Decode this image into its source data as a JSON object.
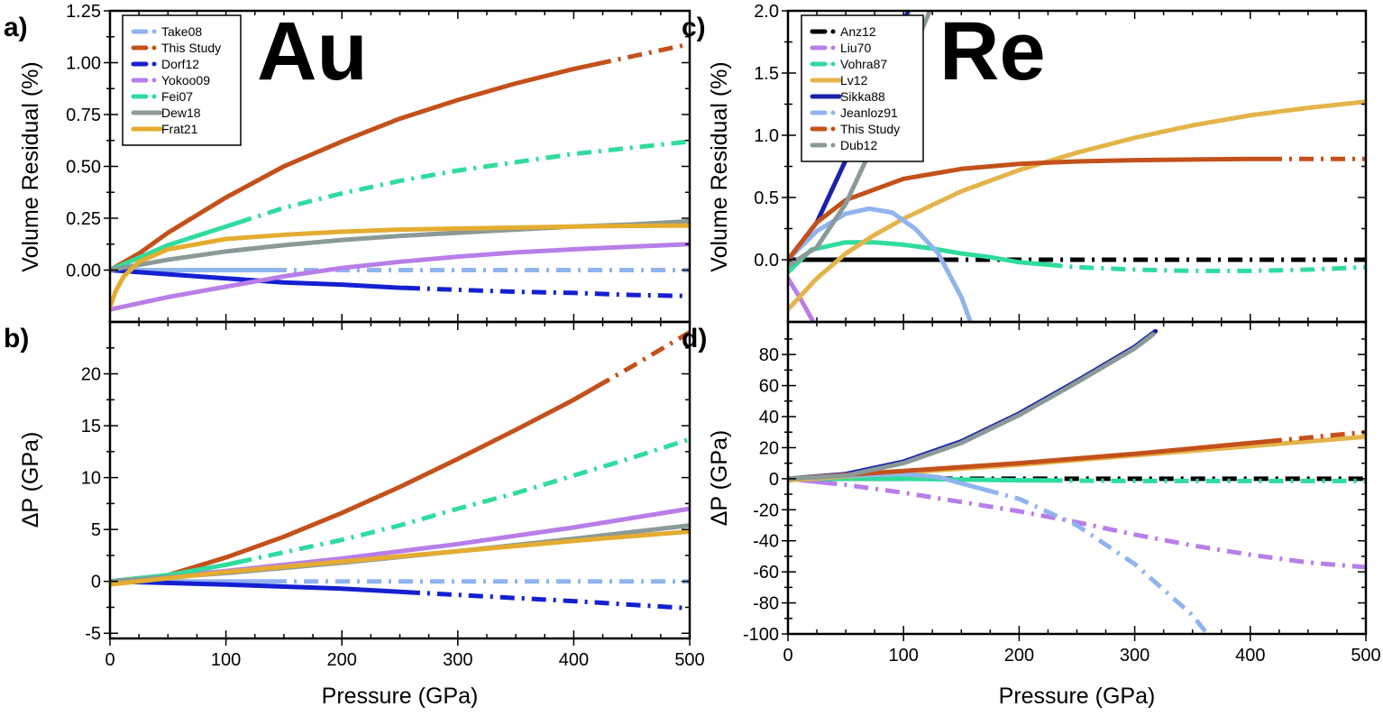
{
  "chart_data": [
    {
      "panel_label": "a)",
      "type": "line",
      "element_label": "Au",
      "xlabel": "",
      "ylabel": "Volume Residual (%)",
      "xlim": [
        0,
        500
      ],
      "ylim": [
        -0.25,
        1.25
      ],
      "yticks": [
        0,
        0.25,
        0.5,
        0.75,
        1.0,
        1.25
      ],
      "ytick_labels": [
        "0.00",
        "0.25",
        "0.50",
        "0.75",
        "1.00",
        "1.25"
      ],
      "xticks": [
        0,
        100,
        200,
        300,
        400,
        500
      ],
      "legend_position": "top-left",
      "series": [
        {
          "name": "Take08",
          "color": "#8fb4ee",
          "legend_style": "dashdot",
          "solid_until": 140,
          "x": [
            0,
            100,
            200,
            300,
            400,
            500
          ],
          "y": [
            0,
            0,
            0,
            0,
            0,
            0
          ]
        },
        {
          "name": "This Study",
          "color": "#c4501a",
          "legend_style": "dashdot",
          "solid_until": 420,
          "x": [
            0,
            25,
            50,
            100,
            150,
            200,
            250,
            300,
            350,
            400,
            450,
            500
          ],
          "y": [
            0,
            0.08,
            0.18,
            0.35,
            0.5,
            0.62,
            0.73,
            0.82,
            0.9,
            0.97,
            1.03,
            1.09
          ]
        },
        {
          "name": "Dorf12",
          "color": "#1420d0",
          "legend_style": "dashdot",
          "solid_until": 255,
          "x": [
            0,
            50,
            100,
            150,
            200,
            250,
            300,
            350,
            400,
            450,
            500
          ],
          "y": [
            0,
            -0.02,
            -0.04,
            -0.06,
            -0.07,
            -0.085,
            -0.095,
            -0.105,
            -0.11,
            -0.12,
            -0.125
          ]
        },
        {
          "name": "Yokoo09",
          "color": "#b87ee8",
          "legend_style": "dashdot",
          "solid_until": 500,
          "x": [
            0,
            50,
            100,
            150,
            200,
            250,
            300,
            350,
            400,
            450,
            500
          ],
          "y": [
            -0.19,
            -0.13,
            -0.08,
            -0.03,
            0.01,
            0.04,
            0.065,
            0.085,
            0.1,
            0.113,
            0.125
          ]
        },
        {
          "name": "Fei07",
          "color": "#2fdc9c",
          "legend_style": "dashdot",
          "solid_until": 110,
          "x": [
            0,
            50,
            100,
            150,
            200,
            250,
            300,
            350,
            400,
            450,
            500
          ],
          "y": [
            0,
            0.12,
            0.21,
            0.3,
            0.37,
            0.43,
            0.48,
            0.52,
            0.56,
            0.59,
            0.62
          ]
        },
        {
          "name": "Dew18",
          "color": "#8a9a98",
          "legend_style": "solid",
          "solid_until": 500,
          "x": [
            0,
            50,
            100,
            150,
            200,
            250,
            300,
            350,
            400,
            450,
            500
          ],
          "y": [
            0,
            0.05,
            0.09,
            0.12,
            0.145,
            0.165,
            0.18,
            0.195,
            0.21,
            0.22,
            0.235
          ]
        },
        {
          "name": "Frat21",
          "color": "#e4ac30",
          "legend_style": "solid",
          "solid_until": 500,
          "x": [
            0,
            5,
            12,
            25,
            50,
            100,
            150,
            200,
            250,
            300,
            350,
            400,
            450,
            500
          ],
          "y": [
            -0.18,
            -0.1,
            -0.03,
            0.04,
            0.1,
            0.15,
            0.17,
            0.185,
            0.195,
            0.2,
            0.205,
            0.21,
            0.213,
            0.215
          ]
        }
      ]
    },
    {
      "panel_label": "b)",
      "type": "line",
      "xlabel": "Pressure (GPa)",
      "ylabel": "ΔP (GPa)",
      "xlim": [
        0,
        500
      ],
      "ylim": [
        -5.5,
        25
      ],
      "yticks": [
        -5,
        0,
        5,
        10,
        15,
        20
      ],
      "ytick_labels": [
        "-5",
        "0",
        "5",
        "10",
        "15",
        "20"
      ],
      "xticks": [
        0,
        100,
        200,
        300,
        400,
        500
      ],
      "xtick_labels": [
        "0",
        "100",
        "200",
        "300",
        "400",
        "500"
      ],
      "series": [
        {
          "name": "Take08",
          "color": "#8fb4ee",
          "solid_until": 140,
          "x": [
            0,
            500
          ],
          "y": [
            0,
            0
          ]
        },
        {
          "name": "This Study",
          "color": "#c4501a",
          "solid_until": 420,
          "x": [
            0,
            50,
            100,
            150,
            200,
            250,
            300,
            350,
            400,
            450,
            500
          ],
          "y": [
            0,
            0.6,
            2.3,
            4.3,
            6.6,
            9.1,
            11.8,
            14.6,
            17.5,
            20.7,
            24
          ]
        },
        {
          "name": "Dorf12",
          "color": "#1420d0",
          "solid_until": 255,
          "x": [
            0,
            100,
            200,
            250,
            300,
            400,
            500
          ],
          "y": [
            0,
            -0.3,
            -0.7,
            -1.0,
            -1.3,
            -1.9,
            -2.6
          ]
        },
        {
          "name": "Yokoo09",
          "color": "#b87ee8",
          "solid_until": 500,
          "x": [
            0,
            100,
            200,
            300,
            400,
            500
          ],
          "y": [
            0,
            1.0,
            2.2,
            3.6,
            5.2,
            7.0
          ]
        },
        {
          "name": "Fei07",
          "color": "#2fdc9c",
          "solid_until": 110,
          "x": [
            0,
            50,
            100,
            150,
            200,
            250,
            300,
            350,
            400,
            450,
            500
          ],
          "y": [
            0,
            0.6,
            1.6,
            2.8,
            4.0,
            5.4,
            7.0,
            8.5,
            10.2,
            11.9,
            13.7
          ]
        },
        {
          "name": "Dew18",
          "color": "#8a9a98",
          "solid_until": 500,
          "x": [
            0,
            100,
            200,
            300,
            400,
            500
          ],
          "y": [
            0,
            0.8,
            1.8,
            2.9,
            4.1,
            5.4
          ]
        },
        {
          "name": "Frat21",
          "color": "#e4ac30",
          "solid_until": 500,
          "x": [
            0,
            100,
            200,
            300,
            400,
            500
          ],
          "y": [
            -0.3,
            0.9,
            1.9,
            2.9,
            3.9,
            4.8
          ]
        }
      ]
    },
    {
      "panel_label": "c)",
      "type": "line",
      "element_label": "Re",
      "xlabel": "",
      "ylabel": "Volume Residual (%)",
      "xlim": [
        0,
        500
      ],
      "ylim": [
        -0.5,
        2.0
      ],
      "yticks": [
        0,
        0.5,
        1.0,
        1.5,
        2.0
      ],
      "ytick_labels": [
        "0.0",
        "0.5",
        "1.0",
        "1.5",
        "2.0"
      ],
      "xticks": [
        0,
        100,
        200,
        300,
        400,
        500
      ],
      "legend_position": "top-left",
      "series": [
        {
          "name": "Anz12",
          "color": "#000000",
          "legend_style": "dashdot",
          "solid_until": 135,
          "x": [
            0,
            500
          ],
          "y": [
            0,
            0
          ]
        },
        {
          "name": "Liu70",
          "color": "#b87ee8",
          "legend_style": "dashdot",
          "solid_until": 500,
          "x": [
            0,
            10,
            25
          ],
          "y": [
            -0.15,
            -0.3,
            -0.55
          ]
        },
        {
          "name": "Vohra87",
          "color": "#2fdc9c",
          "legend_style": "dashdot",
          "solid_until": 225,
          "x": [
            0,
            20,
            50,
            75,
            100,
            125,
            150,
            175,
            200,
            225,
            250,
            300,
            350,
            400,
            450,
            500
          ],
          "y": [
            -0.1,
            0.08,
            0.14,
            0.14,
            0.12,
            0.09,
            0.05,
            0.02,
            -0.02,
            -0.04,
            -0.06,
            -0.08,
            -0.09,
            -0.09,
            -0.08,
            -0.06
          ]
        },
        {
          "name": "Lv12",
          "color": "#e4b44a",
          "legend_style": "solid",
          "solid_until": 500,
          "x": [
            0,
            25,
            50,
            75,
            100,
            150,
            200,
            250,
            300,
            350,
            400,
            450,
            500
          ],
          "y": [
            -0.4,
            -0.15,
            0.05,
            0.2,
            0.33,
            0.55,
            0.72,
            0.86,
            0.98,
            1.08,
            1.16,
            1.22,
            1.27
          ]
        },
        {
          "name": "Sikka88",
          "color": "#1a22a8",
          "legend_style": "solid",
          "solid_until": 500,
          "x": [
            0,
            25,
            50,
            75,
            100,
            110
          ],
          "y": [
            0,
            0.3,
            0.8,
            1.35,
            1.9,
            2.15
          ]
        },
        {
          "name": "Jeanloz91",
          "color": "#8fb4ee",
          "legend_style": "dashdot",
          "solid_until": 500,
          "x": [
            0,
            25,
            50,
            70,
            90,
            110,
            130,
            150,
            160
          ],
          "y": [
            0,
            0.23,
            0.37,
            0.41,
            0.38,
            0.25,
            0.05,
            -0.3,
            -0.55
          ]
        },
        {
          "name": "This Study",
          "color": "#c4501a",
          "legend_style": "dashdot",
          "solid_until": 415,
          "x": [
            0,
            25,
            50,
            100,
            150,
            200,
            250,
            300,
            350,
            400,
            500
          ],
          "y": [
            0,
            0.3,
            0.48,
            0.65,
            0.73,
            0.77,
            0.79,
            0.8,
            0.805,
            0.81,
            0.81
          ]
        },
        {
          "name": "Dub12",
          "color": "#8a9a98",
          "legend_style": "dashdot",
          "solid_until": 500,
          "x": [
            0,
            25,
            50,
            75,
            100,
            125
          ],
          "y": [
            -0.05,
            0.1,
            0.45,
            0.95,
            1.5,
            2.05
          ]
        }
      ]
    },
    {
      "panel_label": "d)",
      "type": "line",
      "xlabel": "Pressure (GPa)",
      "ylabel": "ΔP (GPa)",
      "xlim": [
        0,
        500
      ],
      "ylim": [
        -100,
        101
      ],
      "yticks": [
        -100,
        -80,
        -60,
        -40,
        -20,
        0,
        20,
        40,
        60,
        80
      ],
      "ytick_labels": [
        "-100",
        "-80",
        "-60",
        "-40",
        "-20",
        "0",
        "20",
        "40",
        "60",
        "80"
      ],
      "xticks": [
        0,
        100,
        200,
        300,
        400,
        500
      ],
      "xtick_labels": [
        "0",
        "100",
        "200",
        "300",
        "400",
        "500"
      ],
      "series": [
        {
          "name": "Anz12",
          "color": "#000000",
          "solid_until": 130,
          "x": [
            0,
            500
          ],
          "y": [
            0,
            0
          ]
        },
        {
          "name": "Liu70",
          "color": "#b87ee8",
          "solid_until": 30,
          "x": [
            0,
            50,
            100,
            150,
            200,
            250,
            300,
            350,
            400,
            450,
            500
          ],
          "y": [
            0,
            -4,
            -9,
            -15,
            -21,
            -28,
            -36,
            -43,
            -49,
            -54,
            -57
          ]
        },
        {
          "name": "Vohra87",
          "color": "#2fdc9c",
          "solid_until": 225,
          "x": [
            0,
            100,
            200,
            300,
            400,
            500
          ],
          "y": [
            0,
            0,
            -1,
            -1.5,
            -1.5,
            -1.5
          ]
        },
        {
          "name": "Lv12",
          "color": "#e4b44a",
          "solid_until": 500,
          "x": [
            0,
            100,
            200,
            300,
            400,
            500
          ],
          "y": [
            -1,
            4,
            9,
            15,
            21,
            27
          ]
        },
        {
          "name": "Sikka88",
          "color": "#1a22a8",
          "solid_until": 500,
          "x": [
            0,
            50,
            100,
            150,
            200,
            250,
            300,
            318
          ],
          "y": [
            0,
            3,
            11,
            24,
            42,
            63,
            85,
            95
          ]
        },
        {
          "name": "Jeanloz91",
          "color": "#8fb4ee",
          "solid_until": 170,
          "x": [
            0,
            50,
            100,
            130,
            150,
            175,
            200,
            250,
            300,
            350,
            365
          ],
          "y": [
            0,
            2,
            3,
            1,
            -3,
            -8,
            -13,
            -30,
            -55,
            -88,
            -102
          ]
        },
        {
          "name": "This Study",
          "color": "#c4501a",
          "solid_until": 415,
          "x": [
            0,
            100,
            200,
            300,
            400,
            500
          ],
          "y": [
            0,
            5,
            10,
            16,
            23,
            30
          ]
        },
        {
          "name": "Dub12",
          "color": "#8a9a98",
          "solid_until": 500,
          "x": [
            0,
            50,
            100,
            150,
            200,
            250,
            300,
            316
          ],
          "y": [
            0,
            2,
            10,
            23,
            41,
            62,
            84,
            93
          ]
        }
      ]
    }
  ]
}
